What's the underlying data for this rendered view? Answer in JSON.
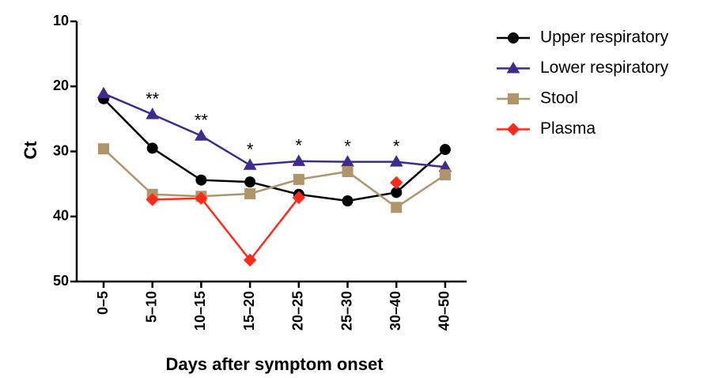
{
  "chart_data": {
    "type": "line",
    "xlabel": "Days after symptom onset",
    "ylabel": "Ct",
    "categories": [
      "0–5",
      "5–10",
      "10–15",
      "15–20",
      "20–25",
      "25–30",
      "30–40",
      "40–50"
    ],
    "series": [
      {
        "name": "Upper respiratory",
        "color": "#000000",
        "marker": "circle",
        "values": [
          21.9,
          29.5,
          34.4,
          34.7,
          36.6,
          37.6,
          36.3,
          29.7
        ]
      },
      {
        "name": "Lower respiratory",
        "color": "#3f2a8f",
        "marker": "triangle",
        "values": [
          21.1,
          24.3,
          27.6,
          32.1,
          31.5,
          31.6,
          31.6,
          32.4
        ]
      },
      {
        "name": "Stool",
        "color": "#b0946a",
        "marker": "square",
        "values": [
          29.6,
          36.6,
          36.9,
          36.5,
          34.3,
          33.1,
          38.6,
          33.6
        ]
      },
      {
        "name": "Plasma",
        "color": "#ff2a1a",
        "marker": "diamond",
        "values": [
          null,
          37.4,
          37.2,
          46.7,
          37.1,
          null,
          34.8,
          null
        ]
      }
    ],
    "annotations": [
      null,
      "**",
      "**",
      "*",
      "*",
      "*",
      "*",
      null
    ],
    "ylim": [
      10,
      50
    ],
    "yticks": [
      10,
      20,
      30,
      40,
      50
    ],
    "y_inverted": true,
    "grid": false,
    "legend": "right"
  }
}
